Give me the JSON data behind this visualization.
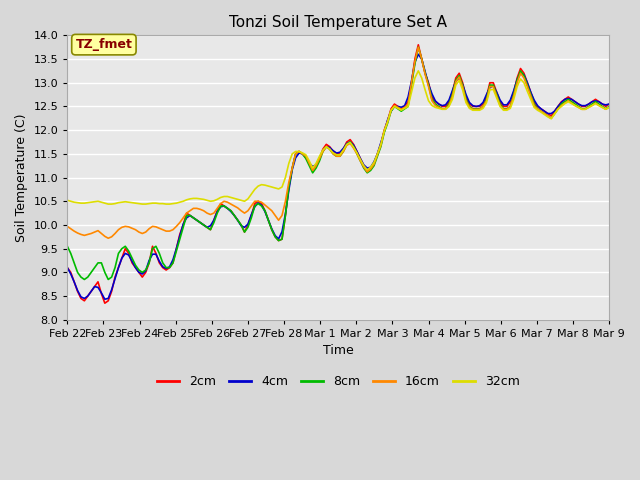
{
  "title": "Tonzi Soil Temperature Set A",
  "xlabel": "Time",
  "ylabel": "Soil Temperature (C)",
  "ylim": [
    8.0,
    14.0
  ],
  "yticks": [
    8.0,
    8.5,
    9.0,
    9.5,
    10.0,
    10.5,
    11.0,
    11.5,
    12.0,
    12.5,
    13.0,
    13.5,
    14.0
  ],
  "x_labels": [
    "Feb 22",
    "Feb 23",
    "Feb 24",
    "Feb 25",
    "Feb 26",
    "Feb 27",
    "Feb 28",
    "Mar 1",
    "Mar 2",
    "Mar 3",
    "Mar 4",
    "Mar 5",
    "Mar 6",
    "Mar 7",
    "Mar 8",
    "Mar 9"
  ],
  "series_colors": [
    "#ff0000",
    "#0000cc",
    "#00bb00",
    "#ff8800",
    "#dddd00"
  ],
  "series_labels": [
    "2cm",
    "4cm",
    "8cm",
    "16cm",
    "32cm"
  ],
  "legend_label": "TZ_fmet",
  "fig_bg_color": "#d8d8d8",
  "plot_bg_color": "#e8e8e8",
  "grid_color": "#ffffff"
}
